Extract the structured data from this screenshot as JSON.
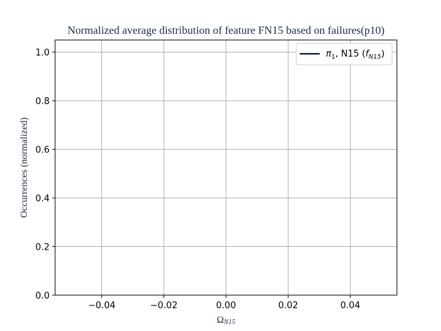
{
  "chart_data": {
    "type": "line",
    "title": "Normalized average distribution of feature FN15 based on failures(p10)",
    "xlabel": "Ω",
    "xlabel_sub": "N15",
    "ylabel": "Occurrences (normalized)",
    "xlim": [
      -0.055,
      0.055
    ],
    "ylim": [
      0.0,
      1.05
    ],
    "x_ticks": [
      -0.04,
      -0.02,
      0.0,
      0.02,
      0.04
    ],
    "x_tick_labels": [
      "−0.04",
      "−0.02",
      "0.00",
      "0.02",
      "0.04"
    ],
    "y_ticks": [
      0.0,
      0.2,
      0.4,
      0.6,
      0.8,
      1.0
    ],
    "y_tick_labels": [
      "0.0",
      "0.2",
      "0.4",
      "0.6",
      "0.8",
      "1.0"
    ],
    "grid": true,
    "legend_position": "top-right",
    "series": [
      {
        "legend_main": "π",
        "legend_sub1": "1",
        "legend_mid": ", N15 (",
        "legend_f": "f",
        "legend_sub2": "N15",
        "legend_end": ")",
        "x": [],
        "y": [],
        "color": "#0d2136"
      }
    ],
    "colors": {
      "text": "#1a2a44",
      "grid": "#b0b0b0",
      "axis": "#000000",
      "series": "#0d2136"
    }
  }
}
